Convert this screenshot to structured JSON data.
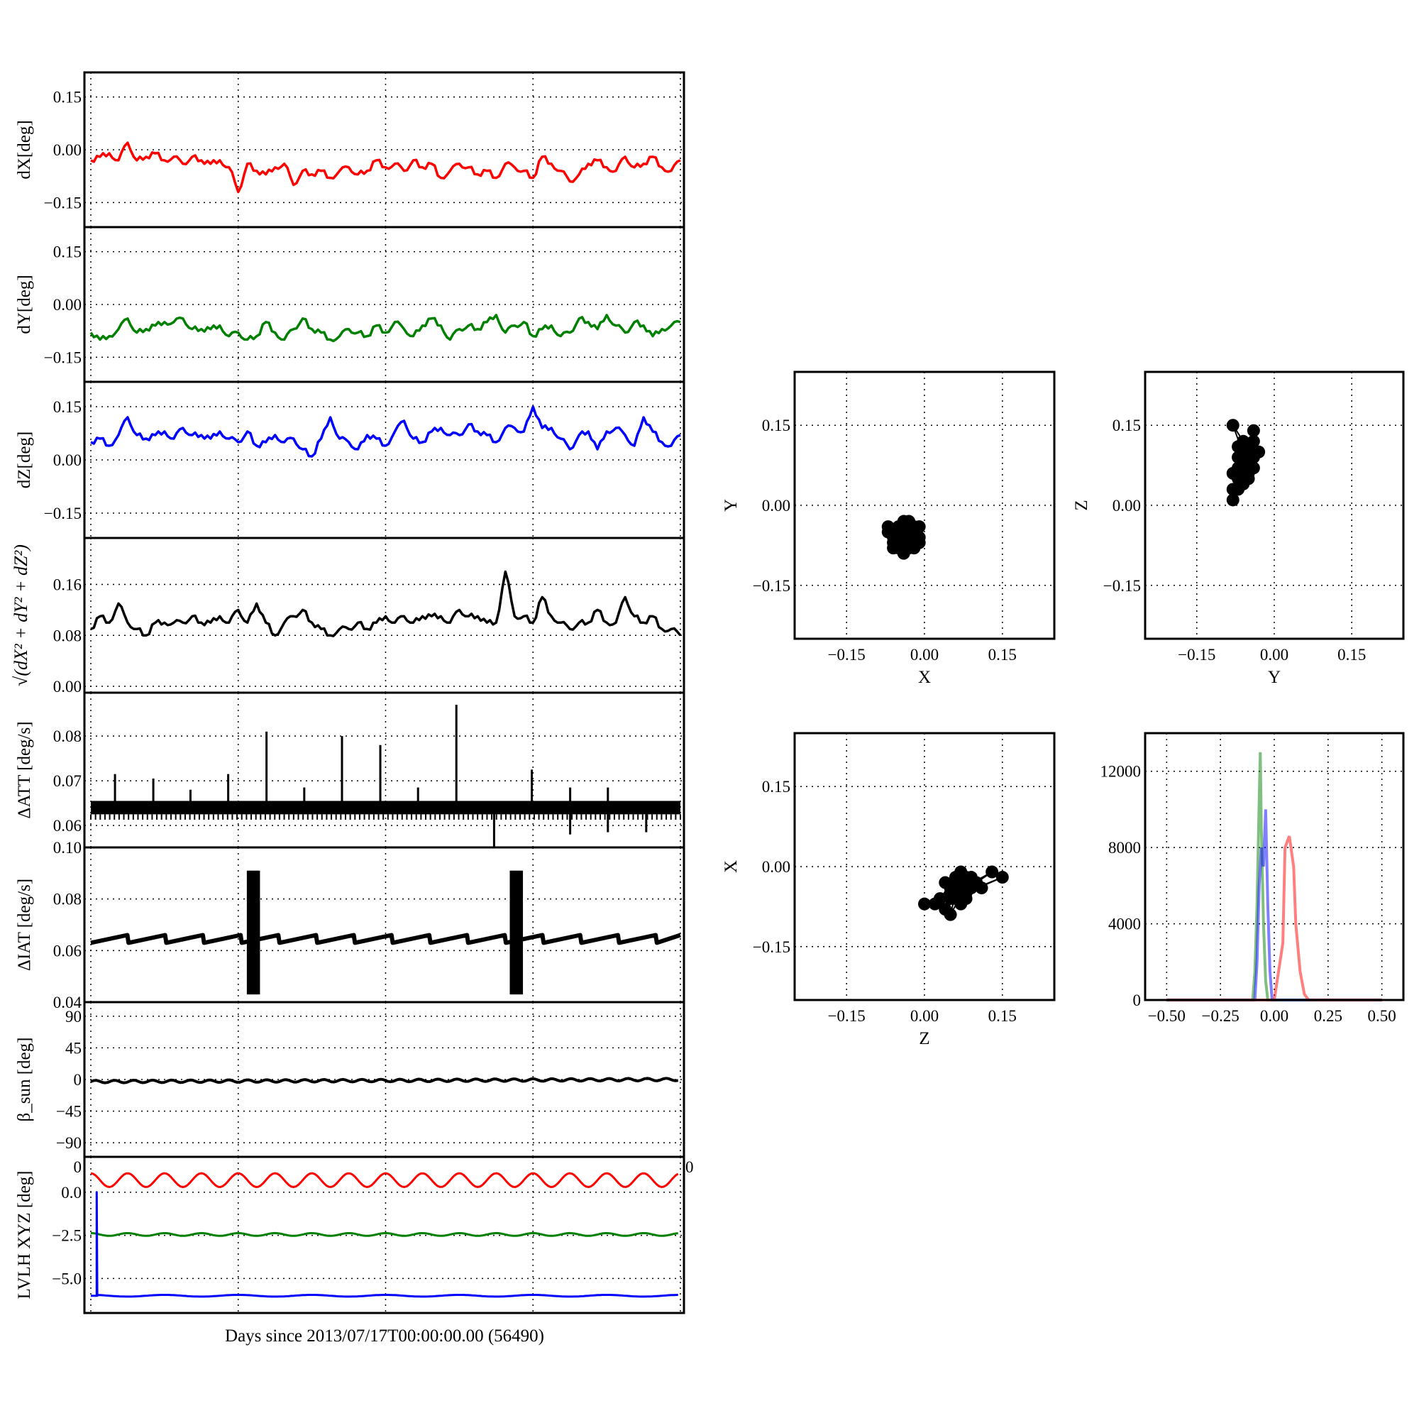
{
  "x_axis_label": "Days since 2013/07/17T00:00:00.00 (56490)",
  "chart_data": [
    {
      "id": "dX",
      "type": "line",
      "ylabel": "dX[deg]",
      "color": "#ff0000",
      "xlim": [
        0,
        100
      ],
      "ylim": [
        -0.22,
        0.22
      ],
      "yticks": [
        0.15,
        0.0,
        -0.15
      ],
      "ytick_labels": [
        "0.15",
        "0.00",
        "−0.15"
      ],
      "grid": true,
      "values": [
        -0.03,
        -0.02,
        -0.01,
        -0.03,
        0.02,
        -0.03,
        -0.02,
        -0.01,
        -0.03,
        -0.02,
        -0.04,
        -0.02,
        -0.03,
        -0.04,
        -0.03,
        -0.05,
        -0.12,
        -0.04,
        -0.06,
        -0.07,
        -0.05,
        -0.04,
        -0.1,
        -0.06,
        -0.07,
        -0.06,
        -0.08,
        -0.06,
        -0.05,
        -0.07,
        -0.06,
        -0.03,
        -0.05,
        -0.04,
        -0.06,
        -0.03,
        -0.05,
        -0.04,
        -0.08,
        -0.06,
        -0.04,
        -0.05,
        -0.07,
        -0.06,
        -0.08,
        -0.04,
        -0.05,
        -0.06,
        -0.08,
        -0.02,
        -0.04,
        -0.06,
        -0.09,
        -0.07,
        -0.04,
        -0.03,
        -0.05,
        -0.06,
        -0.02,
        -0.05,
        -0.04,
        -0.02,
        -0.05,
        -0.06,
        -0.03
      ]
    },
    {
      "id": "dY",
      "type": "line",
      "ylabel": "dY[deg]",
      "color": "#008000",
      "xlim": [
        0,
        100
      ],
      "ylim": [
        -0.22,
        0.22
      ],
      "yticks": [
        0.15,
        0.0,
        -0.15
      ],
      "ytick_labels": [
        "0.15",
        "0.00",
        "−0.15"
      ],
      "grid": true,
      "values": [
        -0.08,
        -0.1,
        -0.09,
        -0.07,
        -0.04,
        -0.08,
        -0.07,
        -0.06,
        -0.05,
        -0.05,
        -0.04,
        -0.07,
        -0.07,
        -0.07,
        -0.06,
        -0.09,
        -0.08,
        -0.1,
        -0.09,
        -0.05,
        -0.08,
        -0.1,
        -0.07,
        -0.04,
        -0.07,
        -0.08,
        -0.1,
        -0.09,
        -0.07,
        -0.08,
        -0.09,
        -0.06,
        -0.08,
        -0.05,
        -0.07,
        -0.09,
        -0.06,
        -0.04,
        -0.06,
        -0.1,
        -0.07,
        -0.06,
        -0.07,
        -0.05,
        -0.03,
        -0.08,
        -0.06,
        -0.05,
        -0.09,
        -0.07,
        -0.06,
        -0.09,
        -0.08,
        -0.04,
        -0.05,
        -0.07,
        -0.03,
        -0.06,
        -0.08,
        -0.05,
        -0.06,
        -0.09,
        -0.07,
        -0.06,
        -0.05
      ]
    },
    {
      "id": "dZ",
      "type": "line",
      "ylabel": "dZ[deg]",
      "color": "#0000ff",
      "xlim": [
        0,
        100
      ],
      "ylim": [
        -0.22,
        0.22
      ],
      "yticks": [
        0.15,
        0.0,
        -0.15
      ],
      "ytick_labels": [
        "0.15",
        "0.00",
        "−0.15"
      ],
      "grid": true,
      "values": [
        0.05,
        0.06,
        0.04,
        0.07,
        0.12,
        0.07,
        0.06,
        0.07,
        0.08,
        0.06,
        0.09,
        0.07,
        0.07,
        0.06,
        0.08,
        0.06,
        0.05,
        0.08,
        0.04,
        0.05,
        0.07,
        0.05,
        0.06,
        0.03,
        0.01,
        0.06,
        0.12,
        0.06,
        0.05,
        0.03,
        0.07,
        0.06,
        0.04,
        0.08,
        0.11,
        0.06,
        0.05,
        0.08,
        0.09,
        0.07,
        0.07,
        0.1,
        0.08,
        0.07,
        0.05,
        0.09,
        0.09,
        0.08,
        0.15,
        0.09,
        0.09,
        0.06,
        0.03,
        0.07,
        0.08,
        0.03,
        0.08,
        0.09,
        0.07,
        0.04,
        0.12,
        0.08,
        0.05,
        0.04,
        0.07
      ]
    },
    {
      "id": "mag",
      "type": "line",
      "ylabel": "√(dX² + dY² + dZ²)",
      "color": "#000000",
      "xlim": [
        0,
        100
      ],
      "ylim": [
        -0.01,
        0.233
      ],
      "yticks": [
        0.16,
        0.08,
        0.0
      ],
      "ytick_labels": [
        "0.16",
        "0.08",
        "0.00"
      ],
      "grid": true,
      "values": [
        0.09,
        0.11,
        0.1,
        0.13,
        0.1,
        0.09,
        0.08,
        0.1,
        0.1,
        0.1,
        0.1,
        0.11,
        0.1,
        0.1,
        0.11,
        0.1,
        0.12,
        0.1,
        0.13,
        0.1,
        0.08,
        0.1,
        0.11,
        0.12,
        0.1,
        0.09,
        0.08,
        0.09,
        0.09,
        0.1,
        0.09,
        0.1,
        0.11,
        0.1,
        0.11,
        0.1,
        0.11,
        0.11,
        0.11,
        0.1,
        0.12,
        0.11,
        0.11,
        0.1,
        0.1,
        0.18,
        0.11,
        0.11,
        0.1,
        0.14,
        0.11,
        0.1,
        0.09,
        0.1,
        0.1,
        0.12,
        0.1,
        0.1,
        0.14,
        0.11,
        0.1,
        0.11,
        0.09,
        0.09,
        0.08
      ]
    },
    {
      "id": "datt",
      "type": "line",
      "ylabel": "ΔATT [deg/s]",
      "color": "#000000",
      "xlim": [
        0,
        100
      ],
      "ylim": [
        0.0551,
        0.0897
      ],
      "yticks": [
        0.08,
        0.07,
        0.06
      ],
      "ytick_labels": [
        "0.08",
        "0.07",
        "0.06"
      ],
      "grid": true,
      "band": [
        0.0625,
        0.0655
      ],
      "spikes": [
        [
          4.1,
          0.0715
        ],
        [
          10.6,
          0.0705
        ],
        [
          16.9,
          0.068
        ],
        [
          23.3,
          0.0715
        ],
        [
          29.8,
          0.081
        ],
        [
          36.2,
          0.0685
        ],
        [
          42.6,
          0.08
        ],
        [
          49.1,
          0.078
        ],
        [
          55.5,
          0.0685
        ],
        [
          62.0,
          0.087
        ],
        [
          68.4,
          0.055
        ],
        [
          74.8,
          0.0725
        ],
        [
          81.3,
          0.0685
        ],
        [
          81.3,
          0.058
        ],
        [
          87.7,
          0.0685
        ],
        [
          87.7,
          0.0585
        ],
        [
          94.2,
          0.0585
        ]
      ]
    },
    {
      "id": "diat",
      "type": "line",
      "ylabel": "ΔIAT [deg/s]",
      "color": "#000000",
      "xlim": [
        0,
        100
      ],
      "ylim": [
        0.04,
        0.1
      ],
      "yticks": [
        0.1,
        0.08,
        0.06,
        0.04
      ],
      "ytick_labels": [
        "0.10",
        "0.08",
        "0.06",
        "0.04"
      ],
      "grid": true,
      "sawtooth": {
        "period": 6.4,
        "low": 0.063,
        "high": 0.066
      },
      "bursts": [
        {
          "x": [
            26.7,
            28.5
          ],
          "min": 0.043,
          "max": 0.091
        },
        {
          "x": [
            71.3,
            73.3
          ],
          "min": 0.043,
          "max": 0.091
        }
      ]
    },
    {
      "id": "beta",
      "type": "line",
      "ylabel": "β_sun [deg]",
      "color": "#000000",
      "xlim": [
        0,
        100
      ],
      "ylim": [
        -110,
        110
      ],
      "yticks": [
        90,
        45,
        0,
        -45,
        -90
      ],
      "ytick_labels": [
        "90",
        "45",
        "0",
        "−45",
        "−90"
      ],
      "grid": true,
      "trend": [
        -3,
        0
      ],
      "oscillation": {
        "amplitude": 1.8,
        "cycles": 31
      }
    },
    {
      "id": "lvlh",
      "type": "line",
      "ylabel": "LVLH XYZ [deg]",
      "xlim": [
        0,
        100
      ],
      "ylim": [
        -7.0,
        2.05
      ],
      "yticks": [
        0.0,
        -2.5,
        -5.0
      ],
      "ytick_labels": [
        "0.0",
        "−2.5",
        "−5.0"
      ],
      "xtick_labels": [
        "0",
        "0"
      ],
      "grid": true,
      "series": [
        {
          "name": "X",
          "color": "#ff0000",
          "mean": 0.7,
          "amplitude": 0.4,
          "cycles": 16
        },
        {
          "name": "Y",
          "color": "#008000",
          "mean": -2.45,
          "amplitude": 0.08,
          "cycles": 16
        },
        {
          "name": "Z",
          "color": "#0000ff",
          "mean": -6.0,
          "amplitude": 0.05,
          "cycles": 8,
          "initial_jump": [
            0.0,
            -6.0
          ]
        }
      ]
    },
    {
      "id": "xy",
      "type": "scatter",
      "xlabel": "X",
      "ylabel": "Y",
      "xlim": [
        -0.25,
        0.25
      ],
      "ylim": [
        -0.25,
        0.25
      ],
      "ticks": [
        -0.15,
        0.0,
        0.15
      ],
      "tick_labels": [
        "−0.15",
        "0.00",
        "0.15"
      ],
      "grid": true,
      "points": [
        [
          -0.06,
          -0.05
        ],
        [
          -0.05,
          -0.07
        ],
        [
          -0.03,
          -0.06
        ],
        [
          -0.04,
          -0.04
        ],
        [
          -0.02,
          -0.05
        ],
        [
          -0.05,
          -0.08
        ],
        [
          -0.07,
          -0.05
        ],
        [
          -0.04,
          -0.09
        ],
        [
          -0.01,
          -0.07
        ],
        [
          -0.03,
          -0.03
        ],
        [
          -0.06,
          -0.07
        ],
        [
          -0.02,
          -0.08
        ],
        [
          -0.05,
          -0.04
        ],
        [
          -0.04,
          -0.06
        ],
        [
          -0.03,
          -0.08
        ],
        [
          -0.06,
          -0.06
        ],
        [
          -0.01,
          -0.04
        ],
        [
          -0.04,
          -0.05
        ],
        [
          -0.05,
          -0.06
        ],
        [
          -0.02,
          -0.06
        ],
        [
          -0.07,
          -0.04
        ],
        [
          -0.03,
          -0.05
        ],
        [
          -0.04,
          -0.08
        ],
        [
          -0.06,
          -0.08
        ],
        [
          -0.01,
          -0.06
        ],
        [
          -0.05,
          -0.05
        ],
        [
          -0.03,
          -0.07
        ],
        [
          -0.04,
          -0.03
        ],
        [
          -0.02,
          -0.04
        ],
        [
          -0.06,
          -0.05
        ]
      ]
    },
    {
      "id": "yz",
      "type": "scatter",
      "xlabel": "Y",
      "ylabel": "Z",
      "xlim": [
        -0.25,
        0.25
      ],
      "ylim": [
        -0.25,
        0.25
      ],
      "ticks": [
        -0.15,
        0.0,
        0.15
      ],
      "tick_labels": [
        "−0.15",
        "0.00",
        "0.15"
      ],
      "grid": true,
      "points": [
        [
          -0.07,
          0.05
        ],
        [
          -0.06,
          0.08
        ],
        [
          -0.05,
          0.1
        ],
        [
          -0.08,
          0.03
        ],
        [
          -0.04,
          0.12
        ],
        [
          -0.06,
          0.06
        ],
        [
          -0.07,
          0.09
        ],
        [
          -0.05,
          0.07
        ],
        [
          -0.08,
          0.15
        ],
        [
          -0.04,
          0.09
        ],
        [
          -0.06,
          0.04
        ],
        [
          -0.05,
          0.11
        ],
        [
          -0.07,
          0.07
        ],
        [
          -0.03,
          0.1
        ],
        [
          -0.06,
          0.09
        ],
        [
          -0.08,
          0.01
        ],
        [
          -0.05,
          0.06
        ],
        [
          -0.07,
          0.11
        ],
        [
          -0.04,
          0.07
        ],
        [
          -0.06,
          0.12
        ],
        [
          -0.05,
          0.05
        ],
        [
          -0.07,
          0.03
        ],
        [
          -0.04,
          0.14
        ],
        [
          -0.06,
          0.07
        ],
        [
          -0.05,
          0.09
        ],
        [
          -0.08,
          0.06
        ]
      ]
    },
    {
      "id": "zx",
      "type": "scatter",
      "xlabel": "Z",
      "ylabel": "X",
      "xlim": [
        -0.25,
        0.25
      ],
      "ylim": [
        -0.25,
        0.25
      ],
      "ticks": [
        -0.15,
        0.0,
        0.15
      ],
      "tick_labels": [
        "−0.15",
        "0.00",
        "0.15"
      ],
      "grid": true,
      "points": [
        [
          0.05,
          -0.05
        ],
        [
          0.07,
          -0.03
        ],
        [
          0.06,
          -0.06
        ],
        [
          0.04,
          -0.08
        ],
        [
          0.08,
          -0.02
        ],
        [
          0.09,
          -0.04
        ],
        [
          0.03,
          -0.06
        ],
        [
          0.06,
          -0.02
        ],
        [
          0.07,
          -0.07
        ],
        [
          0.05,
          -0.04
        ],
        [
          0.1,
          -0.03
        ],
        [
          0.13,
          -0.01
        ],
        [
          0.02,
          -0.07
        ],
        [
          0.06,
          -0.05
        ],
        [
          0.08,
          -0.06
        ],
        [
          0.04,
          -0.03
        ],
        [
          0.07,
          -0.01
        ],
        [
          0.05,
          -0.09
        ],
        [
          0.09,
          -0.02
        ],
        [
          0.11,
          -0.04
        ],
        [
          0.06,
          -0.04
        ],
        [
          0.0,
          -0.07
        ],
        [
          0.08,
          -0.05
        ],
        [
          0.15,
          -0.02
        ],
        [
          0.05,
          -0.06
        ],
        [
          0.07,
          -0.04
        ]
      ]
    },
    {
      "id": "hist",
      "type": "histogram",
      "xlim": [
        -0.6,
        0.6
      ],
      "ylim": [
        0,
        14000
      ],
      "xticks": [
        -0.5,
        -0.25,
        0,
        0.25,
        0.5
      ],
      "xtick_labels": [
        "−0.50",
        "−0.25",
        "0.00",
        "0.25",
        "0.50"
      ],
      "yticks": [
        0,
        4000,
        8000,
        12000
      ],
      "ytick_labels": [
        "0",
        "4000",
        "8000",
        "12000"
      ],
      "grid": true,
      "series": [
        {
          "name": "dY",
          "color": "#008000",
          "bins": [
            [
              -0.5,
              0
            ],
            [
              -0.1,
              0
            ],
            [
              -0.09,
              1500
            ],
            [
              -0.08,
              5000
            ],
            [
              -0.07,
              10500
            ],
            [
              -0.065,
              13000
            ],
            [
              -0.06,
              9000
            ],
            [
              -0.05,
              4000
            ],
            [
              -0.04,
              1000
            ],
            [
              -0.03,
              0
            ],
            [
              0.5,
              0
            ]
          ]
        },
        {
          "name": "dZ",
          "color": "#0000ff",
          "bins": [
            [
              -0.5,
              0
            ],
            [
              -0.09,
              0
            ],
            [
              -0.08,
              2000
            ],
            [
              -0.07,
              6000
            ],
            [
              -0.06,
              8000
            ],
            [
              -0.05,
              7000
            ],
            [
              -0.04,
              10000
            ],
            [
              -0.03,
              5000
            ],
            [
              -0.02,
              1500
            ],
            [
              -0.01,
              0
            ],
            [
              0.5,
              0
            ]
          ]
        },
        {
          "name": "dX",
          "color": "#ff0000",
          "bins": [
            [
              -0.5,
              0
            ],
            [
              0.0,
              0
            ],
            [
              0.02,
              1500
            ],
            [
              0.04,
              3000
            ],
            [
              0.05,
              8000
            ],
            [
              0.07,
              8600
            ],
            [
              0.09,
              7000
            ],
            [
              0.1,
              4000
            ],
            [
              0.12,
              1500
            ],
            [
              0.14,
              300
            ],
            [
              0.16,
              0
            ],
            [
              0.5,
              0
            ]
          ]
        }
      ]
    }
  ]
}
